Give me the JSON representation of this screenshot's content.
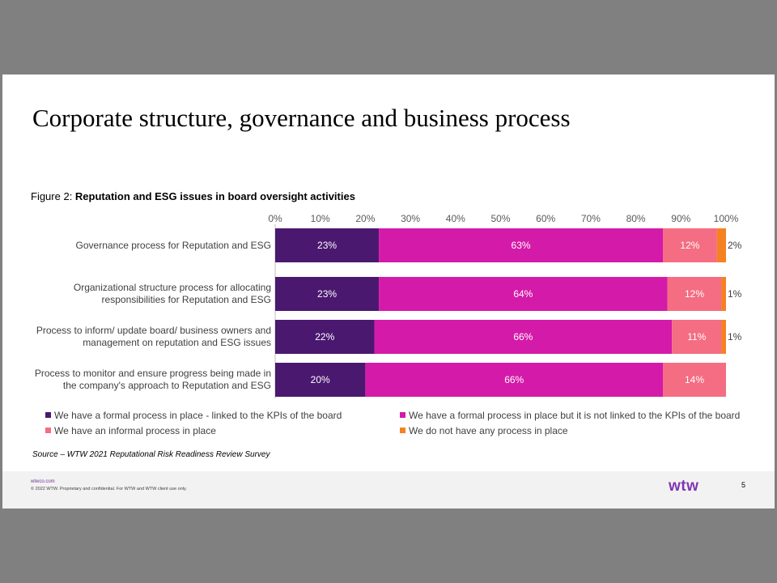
{
  "slide": {
    "title": "Corporate structure, governance and business process",
    "figure_label": "Figure 2: ",
    "figure_title": "Reputation and ESG issues in board oversight activities",
    "source": "Source – WTW 2021 Reputational Risk Readiness Review Survey"
  },
  "footer": {
    "url": "wtwco.com",
    "copyright": "© 2022 WTW. Proprietary and confidential.  For WTW and WTW client use only.",
    "logo": "wtw",
    "page": "5"
  },
  "colors": {
    "formal_linked": "#4b1870",
    "formal_not_linked": "#d41aa8",
    "informal": "#f46d82",
    "none": "#f58220",
    "background": "#808080"
  },
  "chart_data": {
    "type": "bar",
    "orientation": "horizontal",
    "stacked": true,
    "title": "Reputation and ESG issues in board oversight activities",
    "categories": [
      "Governance process for Reputation and ESG",
      "Organizational structure  process for allocating responsibilities for Reputation and ESG",
      "Process to inform/ update board/ business owners and management on reputation and ESG issues",
      "Process to monitor and ensure progress being made in the company's approach to Reputation and ESG"
    ],
    "category_lines": [
      [
        "Governance process for Reputation and ESG"
      ],
      [
        "Organizational structure  process for allocating",
        "responsibilities for Reputation and ESG"
      ],
      [
        "Process to inform/ update board/ business owners and",
        "management on reputation and ESG issues"
      ],
      [
        "Process to monitor and ensure progress being made in",
        "the company's approach to Reputation and ESG"
      ]
    ],
    "x_ticks": [
      "0%",
      "10%",
      "20%",
      "30%",
      "40%",
      "50%",
      "60%",
      "70%",
      "80%",
      "90%",
      "100%"
    ],
    "xlim": [
      0,
      100
    ],
    "xaxis_position": "top",
    "series": [
      {
        "name": "We have a formal process in place - linked to the KPIs of the board",
        "color": "#4b1870",
        "label_color": "#ffffff",
        "values": [
          23,
          23,
          22,
          20
        ],
        "labels": [
          "23%",
          "23%",
          "22%",
          "20%"
        ]
      },
      {
        "name": "We have a formal process in place but it is not linked to the KPIs of the board",
        "color": "#d41aa8",
        "label_color": "#ffffff",
        "values": [
          63,
          64,
          66,
          66
        ],
        "labels": [
          "63%",
          "64%",
          "66%",
          "66%"
        ]
      },
      {
        "name": "We have an informal process in place",
        "color": "#f46d82",
        "label_color": "#ffffff",
        "values": [
          12,
          12,
          11,
          14
        ],
        "labels": [
          "12%",
          "12%",
          "11%",
          "14%"
        ]
      },
      {
        "name": "We do not have any process in place",
        "color": "#f58220",
        "label_color": "#404040",
        "values": [
          2,
          1,
          1,
          0
        ],
        "labels": [
          "2%",
          "1%",
          "1%",
          ""
        ]
      }
    ],
    "grid": false,
    "legend": "bottom"
  }
}
